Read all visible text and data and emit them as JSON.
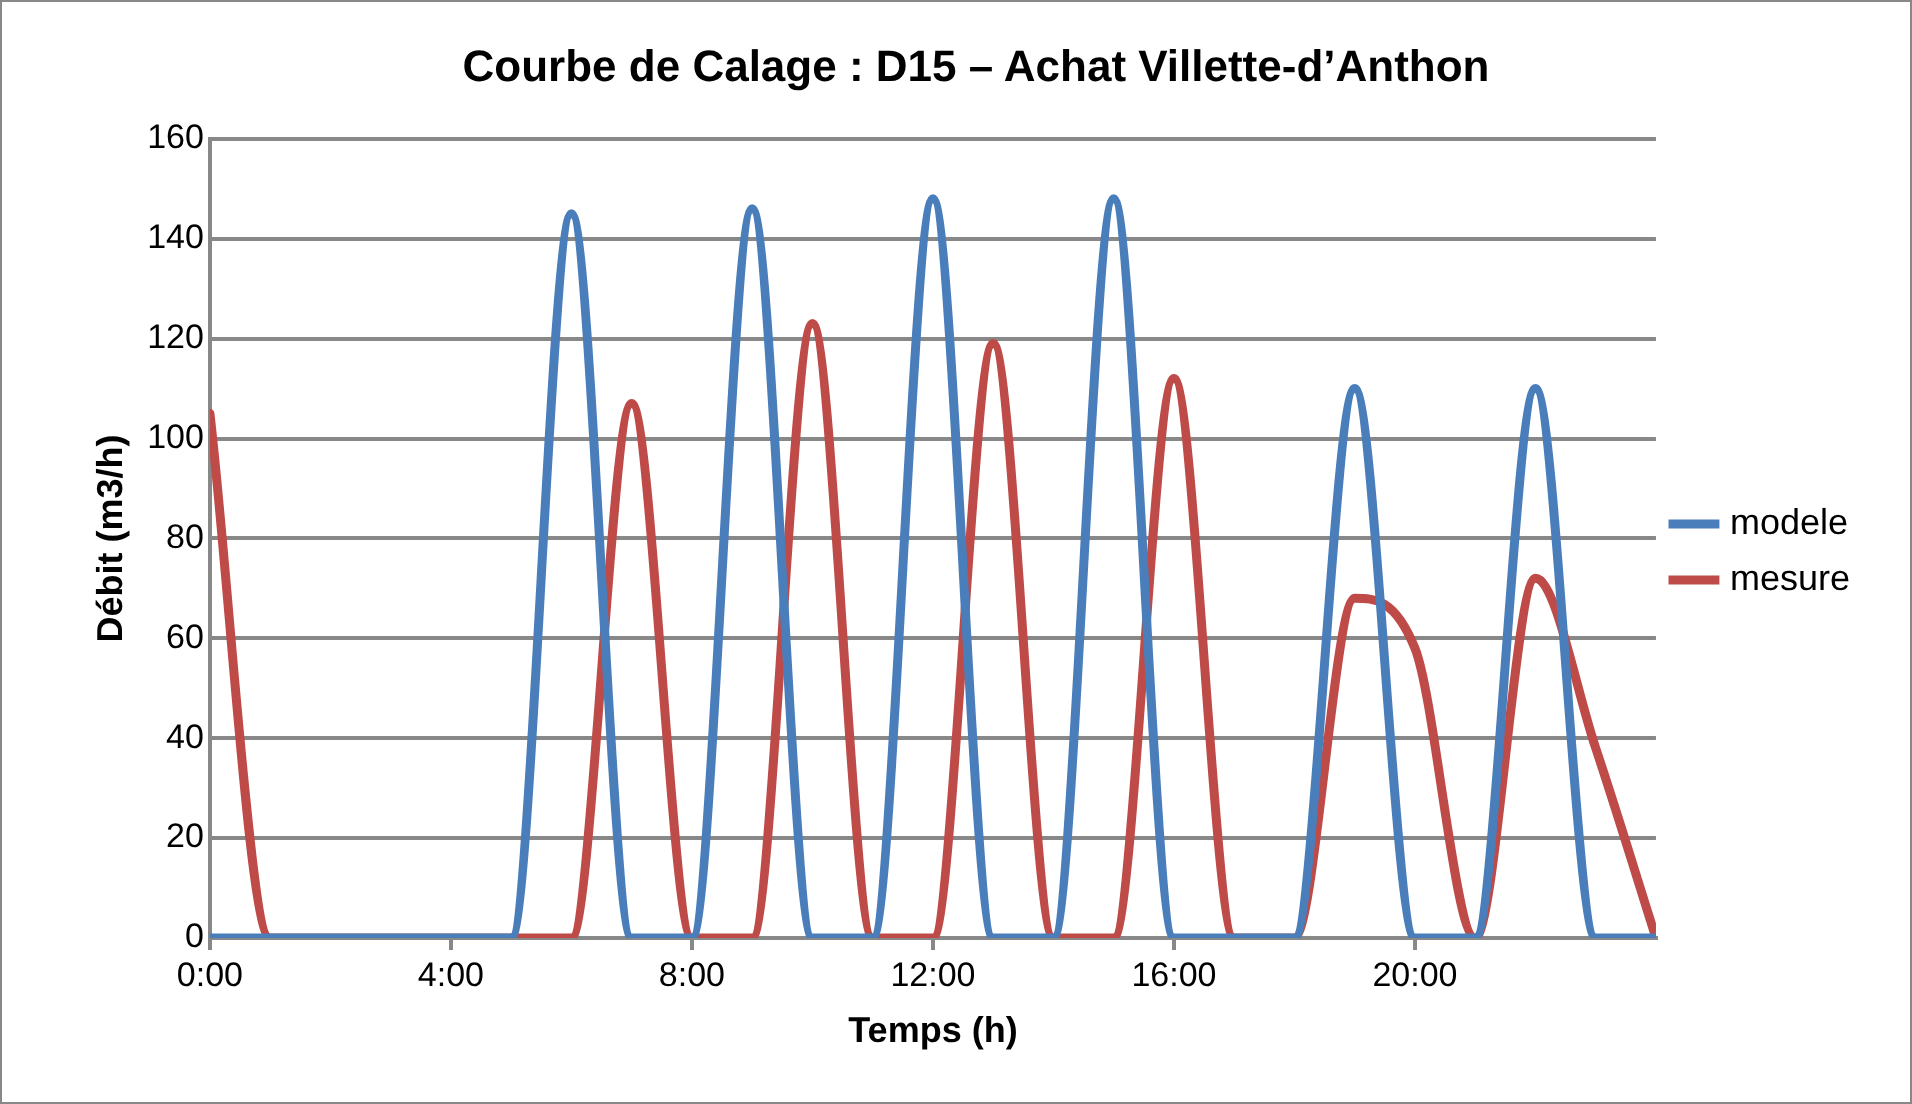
{
  "chart_data": {
    "type": "line",
    "title": "Courbe de Calage : D15 – Achat Villette-d’Anthon",
    "xlabel": "Temps (h)",
    "ylabel": "Débit (m3/h)",
    "x": [
      0,
      1,
      2,
      3,
      4,
      5,
      6,
      7,
      8,
      9,
      10,
      11,
      12,
      13,
      14,
      15,
      16,
      17,
      18,
      19,
      20,
      21,
      22,
      23,
      24
    ],
    "series": [
      {
        "name": "modele",
        "color": "#4a7ebb",
        "values": [
          0,
          0,
          0,
          0,
          0,
          0,
          145,
          0,
          0,
          146,
          0,
          0,
          148,
          0,
          0,
          148,
          0,
          0,
          0,
          110,
          0,
          0,
          110,
          0,
          0
        ]
      },
      {
        "name": "mesure",
        "color": "#be4b48",
        "values": [
          105,
          0,
          0,
          0,
          0,
          0,
          0,
          107,
          0,
          0,
          123,
          0,
          0,
          119,
          0,
          0,
          112,
          0,
          0,
          68,
          58,
          0,
          72,
          38,
          0
        ]
      }
    ],
    "xlim": [
      0,
      24
    ],
    "xticks": [
      {
        "value": 0,
        "label": "0:00"
      },
      {
        "value": 4,
        "label": "4:00"
      },
      {
        "value": 8,
        "label": "8:00"
      },
      {
        "value": 12,
        "label": "12:00"
      },
      {
        "value": 16,
        "label": "16:00"
      },
      {
        "value": 20,
        "label": "20:00"
      }
    ],
    "ylim": [
      0,
      160
    ],
    "yticks": [
      0,
      20,
      40,
      60,
      80,
      100,
      120,
      140,
      160
    ],
    "grid": "y",
    "legend": "right",
    "marker": "none",
    "line_style": "solid"
  }
}
